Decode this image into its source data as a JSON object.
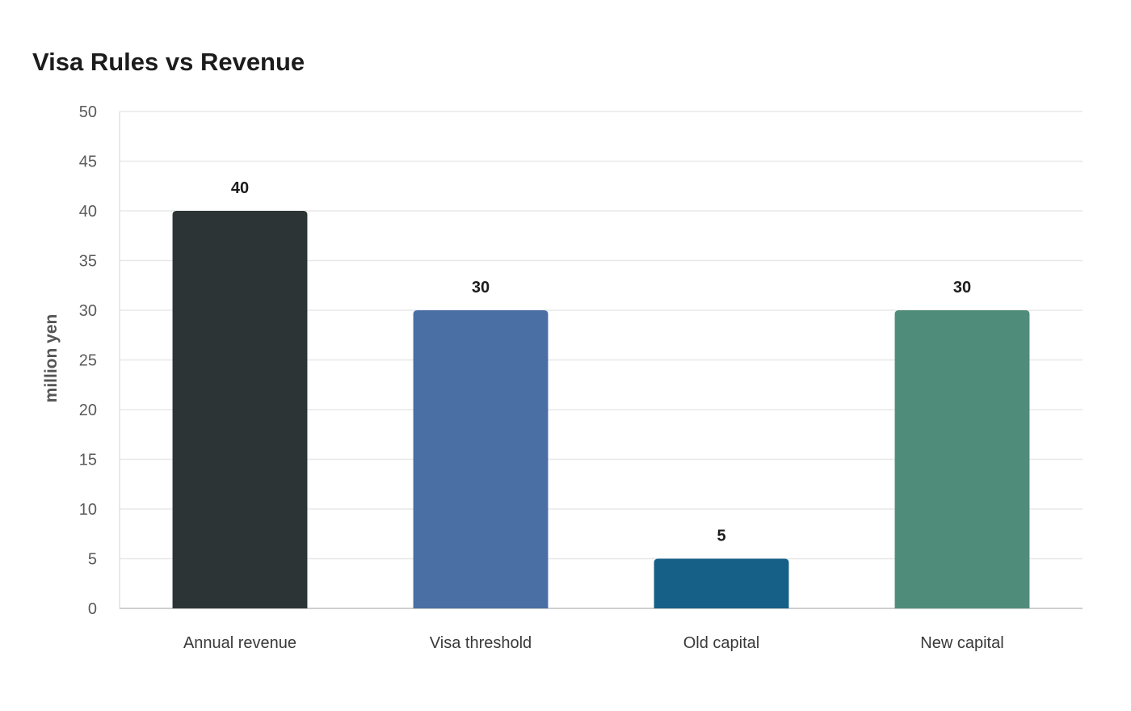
{
  "chart_data": {
    "type": "bar",
    "title": "Visa Rules vs Revenue",
    "xlabel": "",
    "ylabel": "million yen",
    "categories": [
      "Annual revenue",
      "Visa threshold",
      "Old capital",
      "New capital"
    ],
    "values": [
      40,
      30,
      5,
      30
    ],
    "colors": [
      "#2d3436",
      "#4a6fa5",
      "#166088",
      "#4f8d7a"
    ],
    "ylim": [
      0,
      50
    ],
    "yticks": [
      0,
      5,
      10,
      15,
      20,
      25,
      30,
      35,
      40,
      45,
      50
    ],
    "grid": true,
    "legend": "none"
  }
}
